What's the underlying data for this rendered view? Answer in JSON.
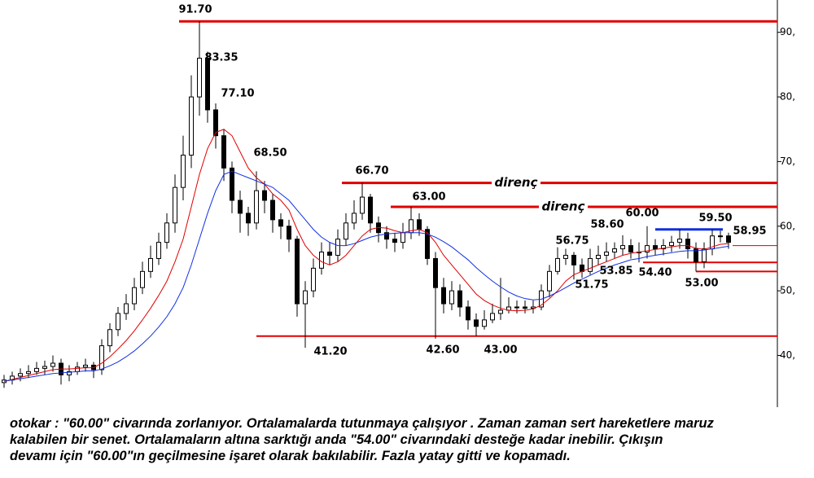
{
  "chart_data": {
    "type": "candlestick",
    "categories": [
      null,
      null,
      null,
      null,
      null,
      null,
      null,
      null,
      null,
      null,
      null,
      null,
      null,
      null,
      null,
      null,
      null,
      null,
      null,
      null,
      null,
      null,
      null,
      null,
      null,
      null,
      null,
      null,
      null,
      null,
      null,
      null,
      null,
      null,
      null,
      null,
      null,
      null,
      null,
      null,
      null,
      null,
      null,
      null,
      null,
      null,
      null,
      null,
      null,
      null,
      null,
      null,
      null,
      null,
      null,
      null,
      null,
      null,
      null,
      null,
      null,
      null,
      null,
      null,
      null,
      null,
      null,
      null,
      null,
      null,
      null,
      null,
      null,
      null,
      null,
      null,
      null,
      null,
      null,
      null,
      null,
      null,
      null,
      null,
      null,
      null,
      null,
      null,
      null,
      null
    ],
    "open": [
      35.8,
      36.2,
      36.8,
      37.2,
      37.5,
      38.0,
      38.3,
      38.8,
      37.0,
      37.5,
      38.2,
      38.5,
      37.8,
      41.5,
      44.0,
      46.5,
      48.0,
      50.5,
      53.0,
      55.0,
      57.5,
      60.5,
      66.0,
      71.0,
      80.0,
      86.0,
      78.0,
      74.0,
      69.0,
      64.0,
      62.0,
      60.5,
      65.5,
      64.0,
      61.0,
      60.0,
      58.0,
      48.0,
      50.0,
      53.5,
      56.0,
      55.5,
      58.0,
      60.5,
      62.0,
      64.5,
      60.5,
      59.0,
      58.0,
      57.5,
      59.0,
      61.0,
      59.5,
      55.0,
      50.5,
      48.0,
      50.0,
      47.5,
      45.5,
      44.5,
      45.5,
      46.5,
      47.0,
      47.5,
      47.5,
      47.3,
      47.5,
      50.0,
      53.0,
      55.0,
      55.5,
      54.0,
      53.0,
      55.0,
      55.5,
      56.0,
      56.5,
      57.0,
      56.0,
      56.0,
      57.0,
      56.5,
      57.0,
      57.5,
      58.0,
      56.5,
      54.5,
      56.5,
      58.5,
      58.5
    ],
    "high": [
      37.0,
      37.5,
      38.0,
      38.5,
      39.0,
      39.2,
      40.0,
      39.5,
      38.5,
      39.0,
      39.5,
      39.0,
      42.5,
      45.0,
      47.5,
      49.5,
      52.0,
      54.5,
      57.0,
      59.0,
      62.0,
      68.0,
      74.0,
      83.35,
      91.7,
      87.0,
      79.0,
      75.0,
      70.0,
      65.5,
      63.0,
      68.5,
      67.0,
      65.0,
      62.0,
      61.0,
      58.5,
      51.5,
      55.0,
      57.5,
      57.5,
      59.5,
      62.0,
      64.0,
      66.7,
      65.0,
      61.5,
      60.0,
      59.0,
      60.5,
      63.0,
      62.0,
      60.0,
      56.0,
      52.0,
      51.5,
      51.0,
      48.5,
      46.5,
      47.0,
      48.0,
      52.0,
      49.0,
      48.5,
      48.5,
      48.5,
      51.0,
      54.0,
      56.75,
      56.5,
      56.0,
      55.0,
      56.5,
      57.0,
      57.5,
      57.5,
      58.6,
      58.0,
      57.5,
      60.0,
      58.0,
      58.0,
      58.5,
      59.5,
      59.0,
      57.5,
      57.5,
      59.5,
      59.3,
      59.0
    ],
    "low": [
      35.0,
      35.5,
      36.0,
      36.5,
      37.0,
      37.0,
      37.5,
      35.5,
      36.0,
      37.0,
      37.5,
      36.5,
      37.0,
      40.5,
      43.0,
      45.5,
      47.0,
      49.5,
      52.0,
      54.0,
      56.5,
      59.0,
      64.0,
      69.0,
      77.1,
      76.0,
      72.0,
      67.0,
      62.0,
      59.0,
      58.5,
      59.5,
      62.0,
      59.0,
      58.0,
      56.0,
      46.0,
      41.2,
      49.0,
      52.5,
      54.0,
      54.5,
      57.0,
      59.5,
      61.0,
      59.0,
      57.5,
      56.5,
      56.0,
      56.5,
      58.0,
      58.5,
      54.0,
      42.6,
      46.5,
      47.0,
      46.0,
      44.0,
      43.0,
      44.0,
      45.0,
      45.5,
      46.5,
      46.5,
      46.5,
      46.5,
      47.0,
      49.0,
      52.5,
      54.0,
      51.75,
      52.0,
      52.5,
      54.0,
      54.5,
      55.0,
      55.5,
      55.0,
      54.4,
      55.0,
      55.5,
      55.5,
      56.0,
      56.5,
      55.0,
      53.0,
      53.5,
      55.5,
      57.5,
      56.5
    ],
    "close": [
      36.2,
      36.8,
      37.2,
      37.5,
      38.0,
      38.3,
      38.8,
      37.0,
      37.5,
      38.2,
      38.5,
      37.8,
      41.5,
      44.0,
      46.5,
      48.0,
      50.5,
      53.0,
      55.0,
      57.5,
      60.5,
      66.0,
      71.0,
      80.0,
      86.0,
      78.0,
      74.0,
      69.0,
      64.0,
      62.0,
      60.5,
      65.5,
      64.0,
      61.0,
      60.0,
      58.0,
      48.0,
      50.0,
      53.5,
      56.0,
      55.5,
      58.0,
      60.5,
      62.0,
      64.5,
      60.5,
      59.0,
      58.0,
      57.5,
      59.0,
      61.0,
      59.5,
      55.0,
      50.5,
      48.0,
      50.0,
      47.5,
      45.5,
      44.5,
      45.5,
      46.5,
      47.0,
      47.5,
      47.5,
      47.3,
      47.5,
      50.0,
      53.0,
      55.0,
      55.5,
      54.0,
      53.0,
      55.0,
      55.5,
      56.0,
      56.5,
      57.0,
      56.0,
      56.0,
      57.0,
      56.5,
      57.0,
      57.5,
      58.0,
      56.5,
      54.5,
      56.5,
      58.5,
      58.5,
      57.5
    ],
    "series": [
      {
        "color": "#e00000",
        "values": [
          36.0,
          36.3,
          36.6,
          36.9,
          37.2,
          37.5,
          37.8,
          37.9,
          37.9,
          38.0,
          38.1,
          38.1,
          38.8,
          39.8,
          41.0,
          42.3,
          43.8,
          45.5,
          47.3,
          49.3,
          51.5,
          54.5,
          58.0,
          63.0,
          68.0,
          72.0,
          74.5,
          75.0,
          74.0,
          71.5,
          69.0,
          67.5,
          66.5,
          65.0,
          64.0,
          62.5,
          59.5,
          57.0,
          55.5,
          54.5,
          54.0,
          54.5,
          55.5,
          57.0,
          58.5,
          59.5,
          59.8,
          59.7,
          59.3,
          59.0,
          59.3,
          59.5,
          59.0,
          57.5,
          55.5,
          54.0,
          52.5,
          51.0,
          49.5,
          48.5,
          47.8,
          47.3,
          47.0,
          46.9,
          47.0,
          47.2,
          47.8,
          48.8,
          50.0,
          51.5,
          52.5,
          53.0,
          53.5,
          54.0,
          54.5,
          55.0,
          55.5,
          55.8,
          56.0,
          56.2,
          56.4,
          56.6,
          56.8,
          57.0,
          57.0,
          56.6,
          56.4,
          56.8,
          57.2,
          57.3
        ]
      },
      {
        "color": "#1030e0",
        "values": [
          36.0,
          36.2,
          36.4,
          36.6,
          36.8,
          37.0,
          37.2,
          37.3,
          37.4,
          37.5,
          37.6,
          37.6,
          37.9,
          38.4,
          39.0,
          39.8,
          40.7,
          41.8,
          43.0,
          44.4,
          46.0,
          48.0,
          50.5,
          54.0,
          58.0,
          62.0,
          65.5,
          68.0,
          68.5,
          68.0,
          67.5,
          67.0,
          66.5,
          66.0,
          65.0,
          64.0,
          62.5,
          61.0,
          59.5,
          58.3,
          57.5,
          57.0,
          57.0,
          57.3,
          57.8,
          58.3,
          58.6,
          58.8,
          58.9,
          59.0,
          59.0,
          59.0,
          58.8,
          58.3,
          57.6,
          56.8,
          55.8,
          54.8,
          53.6,
          52.5,
          51.5,
          50.6,
          49.8,
          49.2,
          48.8,
          48.6,
          48.7,
          49.2,
          49.8,
          50.5,
          51.2,
          51.8,
          52.4,
          53.0,
          53.5,
          54.0,
          54.4,
          54.8,
          55.0,
          55.3,
          55.5,
          55.7,
          55.9,
          56.1,
          56.2,
          56.2,
          56.3,
          56.5,
          56.7,
          56.9
        ]
      }
    ],
    "levels": [
      {
        "value": 91.7,
        "color": "#e00000"
      },
      {
        "value": 66.7,
        "color": "#e00000",
        "label": "direnç"
      },
      {
        "value": 63.0,
        "color": "#e00000",
        "label": "direnç"
      },
      {
        "value": 43.0,
        "color": "#e00000"
      },
      {
        "value": 54.4,
        "color": "#e00000"
      },
      {
        "value": 53.0,
        "color": "#e00000"
      },
      {
        "value": 59.5,
        "color": "#1030e0"
      },
      {
        "value": 57.0,
        "color": "#e00000"
      }
    ],
    "annotations": [
      "91.70",
      "83.35",
      "77.10",
      "68.50",
      "66.70",
      "63.00",
      "60.00",
      "58.60",
      "56.75",
      "59.50",
      "58.95",
      "53.85",
      "54.40",
      "51.75",
      "53.00",
      "41.20",
      "42.60",
      "43.00"
    ],
    "ylim": [
      32,
      95
    ],
    "yticks": [
      {
        "value": 40,
        "label": "40,"
      },
      {
        "value": 50,
        "label": "50,"
      },
      {
        "value": 60,
        "label": "60,"
      },
      {
        "value": 70,
        "label": "70,"
      },
      {
        "value": 80,
        "label": "80,"
      },
      {
        "value": 90,
        "label": "90,"
      }
    ],
    "note": [
      "otokar : \"60.00\" civarında zorlanıyor. Ortalamalarda tutunmaya çalışıyor . Zaman zaman sert hareketlere maruz",
      "kalabilen bir senet. Ortalamaların altına sarktığı anda \"54.00\" civarındaki desteğe kadar inebilir. Çıkışın",
      "devamı için \"60.00\"ın geçilmesine işaret olarak bakılabilir. Fazla yatay gitti ve kopamadı."
    ]
  }
}
